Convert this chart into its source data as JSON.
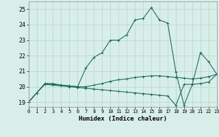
{
  "xlabel": "Humidex (Indice chaleur)",
  "ylabel": "",
  "xlim": [
    0,
    23
  ],
  "ylim": [
    18.7,
    25.5
  ],
  "yticks": [
    19,
    20,
    21,
    22,
    23,
    24,
    25
  ],
  "xticks": [
    0,
    1,
    2,
    3,
    4,
    5,
    6,
    7,
    8,
    9,
    10,
    11,
    12,
    13,
    14,
    15,
    16,
    17,
    18,
    19,
    20,
    21,
    22,
    23
  ],
  "background_color": "#d8eee8",
  "grid_color": "#b8d4cc",
  "line_color": "#1a6b5a",
  "line1_x": [
    0,
    1,
    2,
    3,
    4,
    5,
    6,
    7,
    8,
    9,
    10,
    11,
    12,
    13,
    14,
    15,
    16,
    17,
    18,
    19,
    20,
    21,
    22,
    23
  ],
  "line1_y": [
    19.0,
    19.6,
    20.2,
    20.2,
    20.1,
    20.05,
    20.0,
    20.0,
    20.1,
    20.2,
    20.35,
    20.45,
    20.5,
    20.6,
    20.65,
    20.7,
    20.7,
    20.65,
    20.6,
    20.55,
    20.5,
    20.55,
    20.65,
    20.8
  ],
  "line2_x": [
    0,
    1,
    2,
    3,
    4,
    5,
    6,
    7,
    8,
    9,
    10,
    11,
    12,
    13,
    14,
    15,
    16,
    17,
    18,
    19,
    20,
    21,
    22,
    23
  ],
  "line2_y": [
    19.0,
    19.6,
    20.15,
    20.1,
    20.05,
    20.0,
    19.95,
    19.9,
    19.85,
    19.8,
    19.75,
    19.7,
    19.65,
    19.6,
    19.55,
    19.5,
    19.45,
    19.4,
    18.8,
    20.15,
    20.15,
    20.2,
    20.3,
    20.8
  ],
  "line3_x": [
    0,
    1,
    2,
    3,
    4,
    5,
    6,
    7,
    8,
    9,
    10,
    11,
    12,
    13,
    14,
    15,
    16,
    17,
    18,
    19,
    20,
    21,
    22,
    23
  ],
  "line3_y": [
    19.0,
    19.6,
    20.2,
    20.15,
    20.1,
    20.05,
    20.0,
    21.2,
    21.9,
    22.2,
    23.0,
    23.0,
    23.35,
    24.3,
    24.4,
    25.1,
    24.3,
    24.1,
    20.95,
    18.8,
    20.15,
    22.2,
    21.6,
    20.8
  ]
}
